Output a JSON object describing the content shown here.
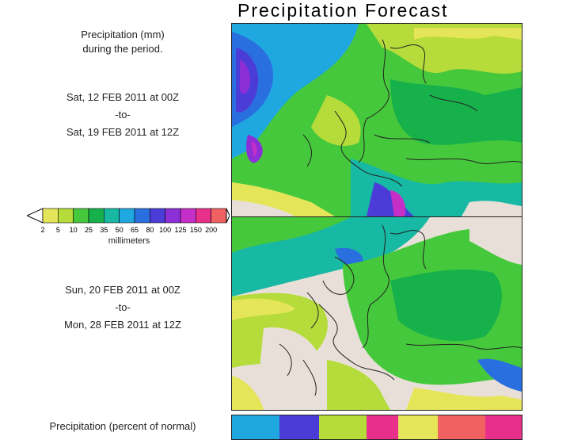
{
  "title": "Precipitation Forecast",
  "legend": {
    "heading_line1": "Precipitation (mm)",
    "heading_line2": "during the period.",
    "unit": "millimeters",
    "ticks": [
      "2",
      "5",
      "10",
      "25",
      "35",
      "50",
      "65",
      "80",
      "100",
      "125",
      "150",
      "200"
    ],
    "colors": [
      "#e5e55a",
      "#b5dc3a",
      "#46c83c",
      "#17b14c",
      "#17b8a4",
      "#1fa7e0",
      "#2a6fe0",
      "#4b3cd8",
      "#8d2fd6",
      "#c52fc8",
      "#e8308a",
      "#f06262"
    ]
  },
  "period1": {
    "start": "Sat, 12 FEB 2011 at 00Z",
    "sep": "-to-",
    "end": "Sat, 19 FEB 2011 at 12Z"
  },
  "period2": {
    "start": "Sun, 20 FEB 2011 at 00Z",
    "sep": "-to-",
    "end": "Mon, 28 FEB 2011 at 12Z"
  },
  "bottom_heading": "Precipitation (percent of normal)"
}
